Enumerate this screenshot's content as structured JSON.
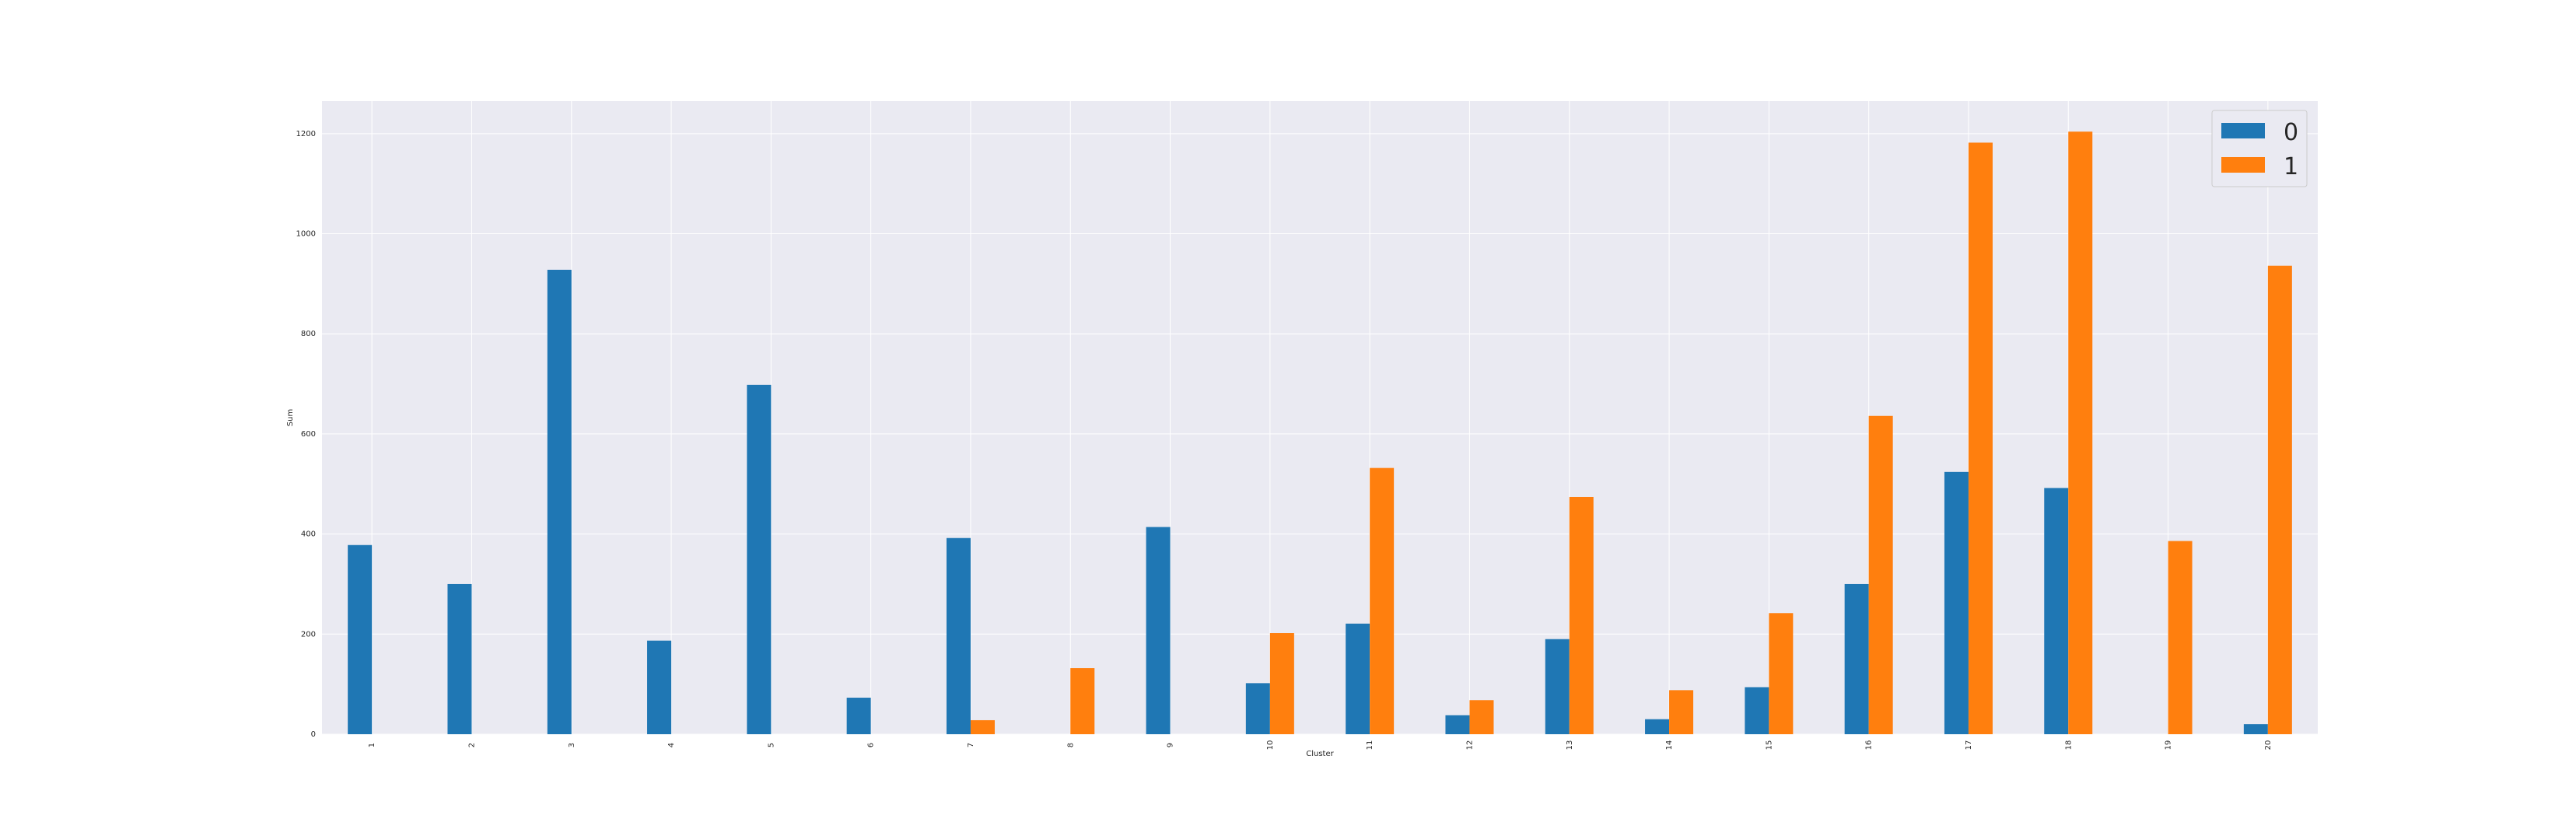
{
  "chart_data": {
    "type": "bar",
    "title": "",
    "xlabel": "Cluster",
    "ylabel": "Sum",
    "categories": [
      "1",
      "2",
      "3",
      "4",
      "5",
      "6",
      "7",
      "8",
      "9",
      "10",
      "11",
      "12",
      "13",
      "14",
      "15",
      "16",
      "17",
      "18",
      "19",
      "20"
    ],
    "series": [
      {
        "name": "0",
        "color": "#1f77b4",
        "values": [
          378,
          300,
          928,
          187,
          698,
          73,
          392,
          0,
          414,
          102,
          221,
          38,
          190,
          30,
          94,
          300,
          524,
          492,
          0,
          20
        ]
      },
      {
        "name": "1",
        "color": "#ff7f0e",
        "values": [
          0,
          0,
          0,
          0,
          0,
          0,
          28,
          132,
          0,
          202,
          532,
          68,
          474,
          88,
          242,
          636,
          1182,
          1204,
          386,
          936
        ]
      }
    ],
    "yticks": [
      0,
      200,
      400,
      600,
      800,
      1000,
      1200
    ],
    "ylim": [
      0,
      1265
    ],
    "grid": true,
    "background": "#eaeaf2",
    "legend_position": "top-right"
  }
}
